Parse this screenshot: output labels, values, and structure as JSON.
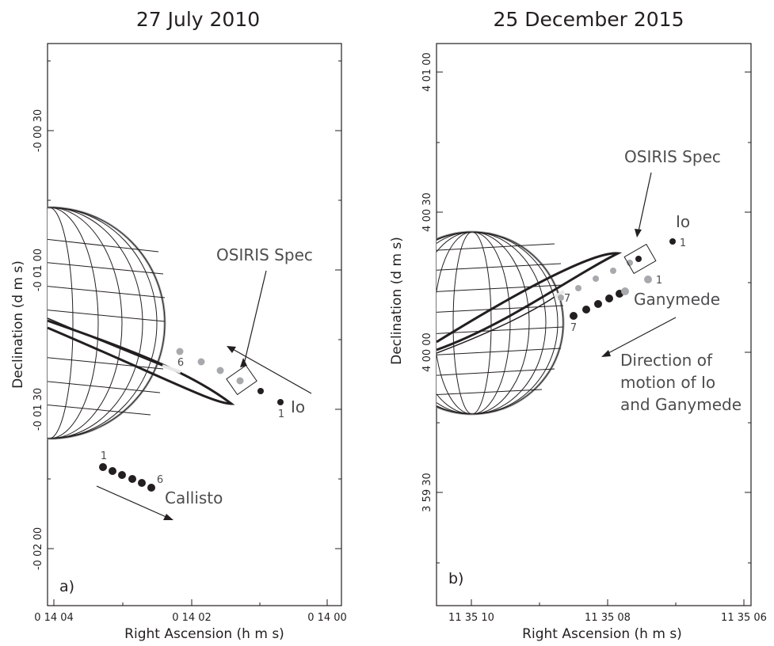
{
  "panel_a": {
    "title": "27 July 2010",
    "label": "a)",
    "xlabel": "Right Ascension (h m s)",
    "ylabel": "Declination (d m s)",
    "xticks": [
      "0 14 04",
      "0 14 02",
      "0 14 00"
    ],
    "yticks": [
      "-0 00 30",
      "-0 01 00",
      "-0 01 30",
      "-0 02 00"
    ],
    "osiris": "OSIRIS Spec",
    "io": "Io",
    "callisto": "Callisto",
    "io_num_start": "6",
    "io_num_end": "1",
    "cal_num_start": "1",
    "cal_num_end": "6"
  },
  "panel_b": {
    "title": "25 December 2015",
    "label": "b)",
    "xlabel": "Right Ascension (h m s)",
    "ylabel": "Declination (d m s)",
    "xticks": [
      "11 35 10",
      "11 35 08",
      "11 35 06"
    ],
    "yticks": [
      "4 01 00",
      "4 00 30",
      "4 00 00",
      "3 59 30"
    ],
    "osiris": "OSIRIS Spec",
    "io": "Io",
    "ganymede": "Ganymede",
    "direction": [
      "Direction of",
      "motion of Io",
      "and Ganymede"
    ],
    "io_num_start": "7",
    "io_num_end": "1",
    "gan_num_start": "7",
    "gan_num_end": "1"
  },
  "colors": {
    "ink": "#231f20",
    "grey_moon": "#a7a9ac",
    "text_grey": "#4d4d4f"
  }
}
